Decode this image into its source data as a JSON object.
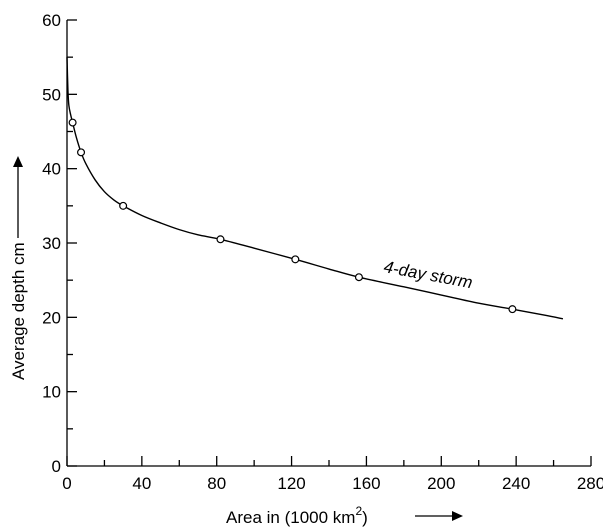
{
  "chart_data": {
    "type": "line",
    "title": "",
    "xlabel": "Area in (1000 km",
    "xlabel_superscript": "2",
    "xlabel_suffix": ")",
    "ylabel": "Average depth cm",
    "xlim": [
      0,
      280
    ],
    "ylim": [
      0,
      60
    ],
    "x_ticks": [
      0,
      40,
      80,
      120,
      160,
      200,
      240,
      280
    ],
    "y_ticks": [
      0,
      10,
      20,
      30,
      40,
      50,
      60
    ],
    "grid": false,
    "series": [
      {
        "name": "4-day storm",
        "color": "#000000",
        "points": {
          "x": [
            3,
            7.5,
            30,
            82,
            122,
            156,
            238
          ],
          "y": [
            46.2,
            42.2,
            35,
            30.5,
            27.8,
            25.4,
            21.1
          ]
        },
        "curve": {
          "x": [
            0,
            0.5,
            1,
            2,
            3,
            5,
            7.5,
            10,
            15,
            20,
            25,
            30,
            40,
            50,
            60,
            70,
            82,
            100,
            122,
            140,
            156,
            180,
            200,
            220,
            238,
            255,
            265
          ],
          "y": [
            55,
            50.5,
            48.5,
            47.2,
            46.2,
            44.2,
            42.2,
            40.7,
            38.5,
            36.9,
            35.8,
            35,
            33.7,
            32.7,
            31.8,
            31.1,
            30.5,
            29.3,
            27.8,
            26.5,
            25.4,
            24.1,
            23,
            21.9,
            21.1,
            20.3,
            19.8
          ]
        }
      }
    ]
  }
}
